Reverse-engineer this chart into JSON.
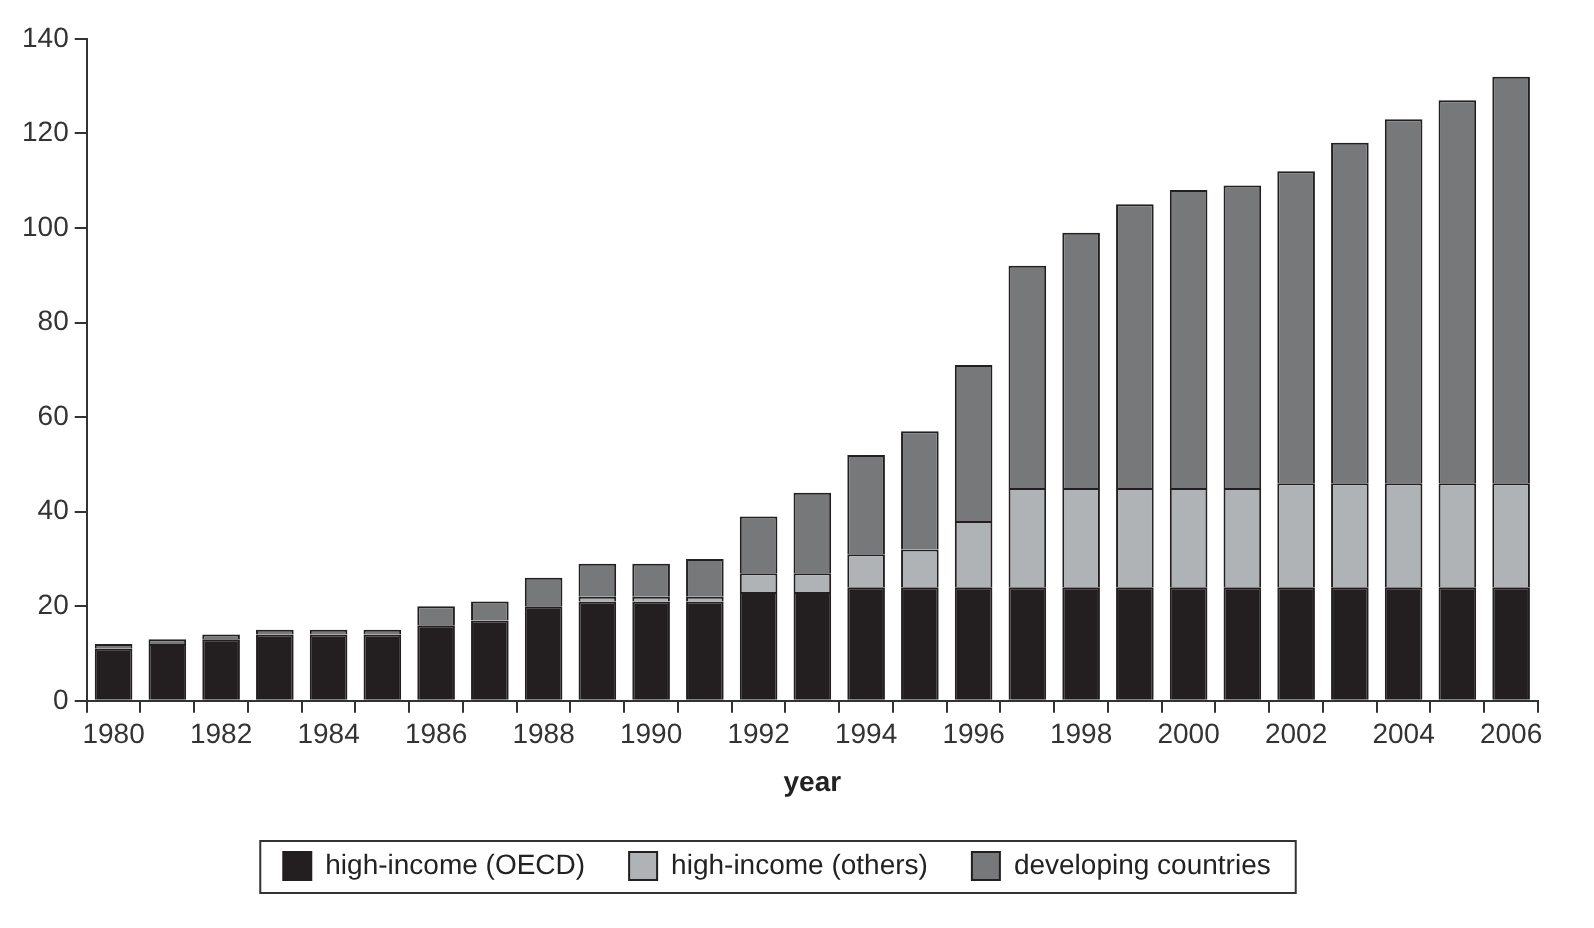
{
  "chart_data": {
    "type": "bar",
    "stacked": true,
    "xlabel": "year",
    "categories": [
      "1980",
      null,
      "1982",
      null,
      "1984",
      null,
      "1986",
      null,
      "1988",
      null,
      "1990",
      null,
      "1992",
      null,
      "1994",
      null,
      "1996",
      null,
      "1998",
      null,
      "2000",
      null,
      "2002",
      null,
      "2004",
      null,
      "2006"
    ],
    "series": [
      {
        "name": "high-income (OECD)",
        "color": "#231f20",
        "values": [
          11,
          12,
          13,
          14,
          14,
          14,
          16,
          17,
          20,
          21,
          21,
          21,
          23,
          23,
          24,
          24,
          24,
          24,
          24,
          24,
          24,
          24,
          24,
          24,
          24,
          24,
          24
        ]
      },
      {
        "name": "high-income (others)",
        "color": "#b0b3b5",
        "values": [
          0,
          0,
          0,
          0,
          0,
          0,
          0,
          0,
          0,
          1,
          1,
          1,
          4,
          4,
          7,
          8,
          14,
          21,
          21,
          21,
          21,
          21,
          22,
          22,
          22,
          22,
          22
        ]
      },
      {
        "name": "developing countries",
        "color": "#77787a",
        "values": [
          1,
          1,
          1,
          1,
          1,
          1,
          4,
          4,
          6,
          7,
          7,
          8,
          12,
          17,
          21,
          25,
          33,
          47,
          54,
          60,
          63,
          64,
          66,
          72,
          77,
          81,
          86
        ]
      }
    ],
    "ylim": [
      0,
      140
    ],
    "yticks": [
      0,
      20,
      40,
      60,
      80,
      100,
      120,
      140
    ],
    "grid": false,
    "legend": "bottom"
  }
}
